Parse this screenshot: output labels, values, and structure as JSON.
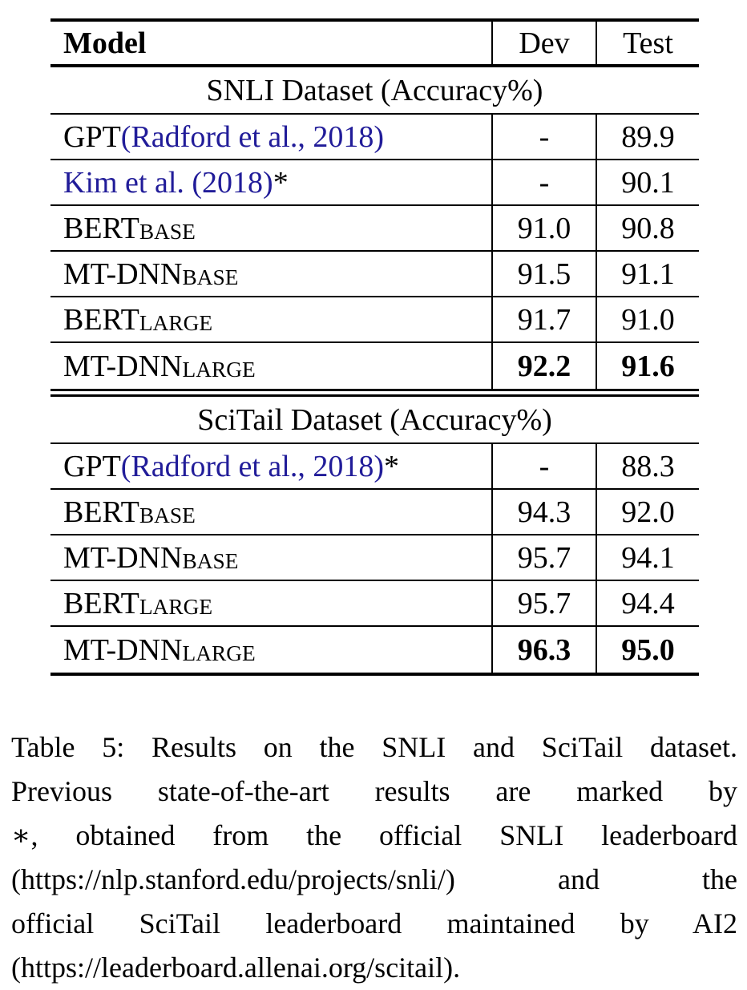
{
  "colors": {
    "link_blue": "#211c99",
    "text": "#000000"
  },
  "table": {
    "header": {
      "model": "Model",
      "dev": "Dev",
      "test": "Test"
    },
    "sections": [
      {
        "title": "SNLI Dataset (Accuracy%)",
        "rows": [
          {
            "model": [
              {
                "t": "GPT ",
                "link": false
              },
              {
                "t": "(Radford et al., 2018)",
                "link": true
              }
            ],
            "dev": "-",
            "test": "89.9",
            "bold": false
          },
          {
            "model": [
              {
                "t": "Kim et al. (2018)",
                "link": true
              },
              {
                "t": "*",
                "link": false
              }
            ],
            "dev": "-",
            "test": "90.1",
            "bold": false
          },
          {
            "model": [
              {
                "t": "BERT",
                "link": false
              },
              {
                "t": "BASE",
                "link": false,
                "sub": true
              }
            ],
            "dev": "91.0",
            "test": "90.8",
            "bold": false
          },
          {
            "model": [
              {
                "t": "MT-DNN",
                "link": false
              },
              {
                "t": "BASE",
                "link": false,
                "sub": true
              }
            ],
            "dev": "91.5",
            "test": "91.1",
            "bold": false
          },
          {
            "model": [
              {
                "t": "BERT",
                "link": false
              },
              {
                "t": "LARGE",
                "link": false,
                "sub": true
              }
            ],
            "dev": "91.7",
            "test": "91.0",
            "bold": false
          },
          {
            "model": [
              {
                "t": "MT-DNN",
                "link": false
              },
              {
                "t": "LARGE",
                "link": false,
                "sub": true
              }
            ],
            "dev": "92.2",
            "test": "91.6",
            "bold": true
          }
        ]
      },
      {
        "title": "SciTail Dataset (Accuracy%)",
        "rows": [
          {
            "model": [
              {
                "t": "GPT ",
                "link": false
              },
              {
                "t": "(Radford et al., 2018)",
                "link": true
              },
              {
                "t": "*",
                "link": false
              }
            ],
            "dev": "-",
            "test": "88.3",
            "bold": false
          },
          {
            "model": [
              {
                "t": "BERT",
                "link": false
              },
              {
                "t": "BASE",
                "link": false,
                "sub": true
              }
            ],
            "dev": "94.3",
            "test": "92.0",
            "bold": false
          },
          {
            "model": [
              {
                "t": "MT-DNN",
                "link": false
              },
              {
                "t": "BASE",
                "link": false,
                "sub": true
              }
            ],
            "dev": "95.7",
            "test": "94.1",
            "bold": false
          },
          {
            "model": [
              {
                "t": "BERT",
                "link": false
              },
              {
                "t": "LARGE",
                "link": false,
                "sub": true
              }
            ],
            "dev": "95.7",
            "test": "94.4",
            "bold": false
          },
          {
            "model": [
              {
                "t": "MT-DNN",
                "link": false
              },
              {
                "t": "LARGE",
                "link": false,
                "sub": true
              }
            ],
            "dev": "96.3",
            "test": "95.0",
            "bold": true
          }
        ]
      }
    ]
  },
  "caption": {
    "lines": [
      "Table 5: Results on the SNLI and SciTail dataset.",
      "Previous state-of-the-art results are marked by",
      "∗, obtained from the official SNLI leaderboard",
      "(https://nlp.stanford.edu/projects/snli/) and the",
      "official SciTail leaderboard maintained by AI2",
      "(https://leaderboard.allenai.org/scitail)."
    ]
  }
}
